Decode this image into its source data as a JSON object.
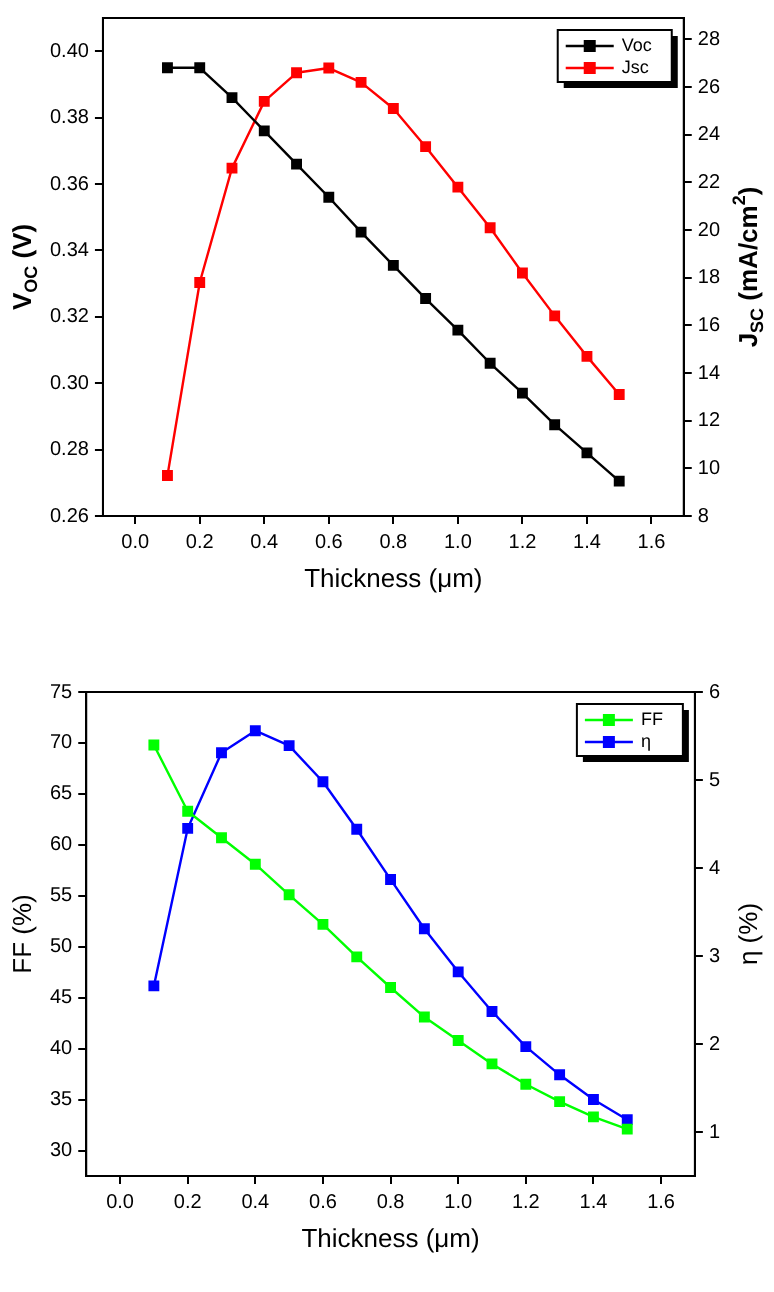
{
  "chart_data": [
    {
      "type": "line",
      "xlabel": "Thickness (μm)",
      "ylabel": "V$_{OC}$ (V)",
      "y2label": "J$_{SC}$ (mA/cm$^{2}$)",
      "x": [
        0.1,
        0.2,
        0.3,
        0.4,
        0.5,
        0.6,
        0.7,
        0.8,
        0.9,
        1.0,
        1.1,
        1.2,
        1.3,
        1.4,
        1.5
      ],
      "series": [
        {
          "name": "Voc",
          "color": "#000000",
          "values": [
            0.395,
            0.395,
            0.386,
            0.376,
            0.366,
            0.356,
            0.3455,
            0.3355,
            0.3255,
            0.316,
            0.306,
            0.297,
            0.2875,
            0.279,
            0.2705
          ]
        },
        {
          "name": "Jsc",
          "color": "#ff0000",
          "axis": "y2",
          "values": [
            9.7,
            17.8,
            22.6,
            25.4,
            26.6,
            26.8,
            26.2,
            25.1,
            23.5,
            21.8,
            20.1,
            18.2,
            16.4,
            14.7,
            13.1
          ]
        }
      ],
      "xlim": [
        -0.1,
        1.7
      ],
      "xticks": [
        {
          "value": 0,
          "label": "0.0"
        },
        {
          "value": 0.2,
          "label": "0.2"
        },
        {
          "value": 0.4,
          "label": "0.4"
        },
        {
          "value": 0.6,
          "label": "0.6"
        },
        {
          "value": 0.8,
          "label": "0.8"
        },
        {
          "value": 1,
          "label": "1.0"
        },
        {
          "value": 1.2,
          "label": "1.2"
        },
        {
          "value": 1.4,
          "label": "1.4"
        },
        {
          "value": 1.6,
          "label": "1.6"
        }
      ],
      "ylim": [
        0.26,
        0.41
      ],
      "yticks": [
        0.26,
        0.28,
        {
          "value": 0.3,
          "label": "0.30"
        },
        0.32,
        0.34,
        0.36,
        0.38,
        {
          "value": 0.4,
          "label": "0.40"
        }
      ],
      "y2lim": [
        8,
        28.9
      ],
      "y2ticks": [
        8,
        10,
        12,
        14,
        16,
        18,
        20,
        22,
        24,
        26,
        28
      ],
      "grid": false,
      "legend": "top right",
      "marker": "square",
      "line_style": "solid"
    },
    {
      "type": "line",
      "xlabel": "Thickness (μm)",
      "ylabel": "FF (%)",
      "y2label": "η (%)",
      "x": [
        0.1,
        0.2,
        0.3,
        0.4,
        0.5,
        0.6,
        0.7,
        0.8,
        0.9,
        1.0,
        1.1,
        1.2,
        1.3,
        1.4,
        1.5
      ],
      "series": [
        {
          "name": "FF",
          "color": "#00ff00",
          "values": [
            69.8,
            63.3,
            60.7,
            58.1,
            55.1,
            52.2,
            49.0,
            46.0,
            43.1,
            40.8,
            38.5,
            36.5,
            34.8,
            33.3,
            32.1
          ]
        },
        {
          "name": "η",
          "color": "#0000ff",
          "axis": "y2",
          "values": [
            2.66,
            4.45,
            5.31,
            5.56,
            5.39,
            4.98,
            4.44,
            3.87,
            3.31,
            2.82,
            2.37,
            1.97,
            1.65,
            1.37,
            1.14
          ]
        }
      ],
      "xlim": [
        -0.1,
        1.7
      ],
      "xticks": [
        {
          "value": 0,
          "label": "0.0"
        },
        {
          "value": 0.2,
          "label": "0.2"
        },
        {
          "value": 0.4,
          "label": "0.4"
        },
        {
          "value": 0.6,
          "label": "0.6"
        },
        {
          "value": 0.8,
          "label": "0.8"
        },
        {
          "value": 1,
          "label": "1.0"
        },
        {
          "value": 1.2,
          "label": "1.2"
        },
        {
          "value": 1.4,
          "label": "1.4"
        },
        {
          "value": 1.6,
          "label": "1.6"
        }
      ],
      "ylim": [
        27.5,
        75
      ],
      "yticks": [
        30,
        35,
        40,
        45,
        50,
        55,
        60,
        65,
        70,
        75
      ],
      "y2lim": [
        0.5,
        6
      ],
      "y2ticks": [
        1,
        2,
        3,
        4,
        5,
        6
      ],
      "grid": false,
      "legend": "top right",
      "marker": "square",
      "line_style": "solid"
    }
  ]
}
